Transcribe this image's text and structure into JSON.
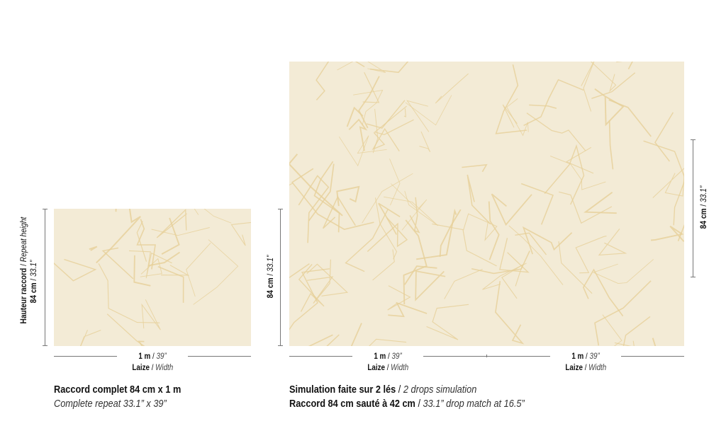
{
  "colors": {
    "swatch_bg": "#f3ebd6",
    "pattern_line": "#e6cf98",
    "rule": "#777777"
  },
  "small_panel": {
    "height_label_fr": "Hauteur raccord",
    "height_label_en": "Repeat height",
    "height_value_metric": "84 cm",
    "height_value_imperial": "33.1”",
    "width_value_metric": "1 m",
    "width_value_imperial": "39”",
    "width_label_fr": "Laize",
    "width_label_en": "Width",
    "caption_fr": "Raccord complet 84 cm x 1 m",
    "caption_en": "Complete repeat 33.1” x 39”"
  },
  "large_panel": {
    "left_height_metric": "84 cm",
    "left_height_imperial": "33.1”",
    "right_height_metric": "84 cm",
    "right_height_imperial": "33.1”",
    "widths": [
      {
        "metric": "1 m",
        "imperial": "39”",
        "label_fr": "Laize",
        "label_en": "Width"
      },
      {
        "metric": "1 m",
        "imperial": "39”",
        "label_fr": "Laize",
        "label_en": "Width"
      }
    ],
    "caption1_fr": "Simulation faite sur 2 lés",
    "caption1_en": "2 drops simulation",
    "caption2_fr": "Raccord 84 cm sauté à 42 cm",
    "caption2_en": "33.1” drop match at 16.5”"
  }
}
